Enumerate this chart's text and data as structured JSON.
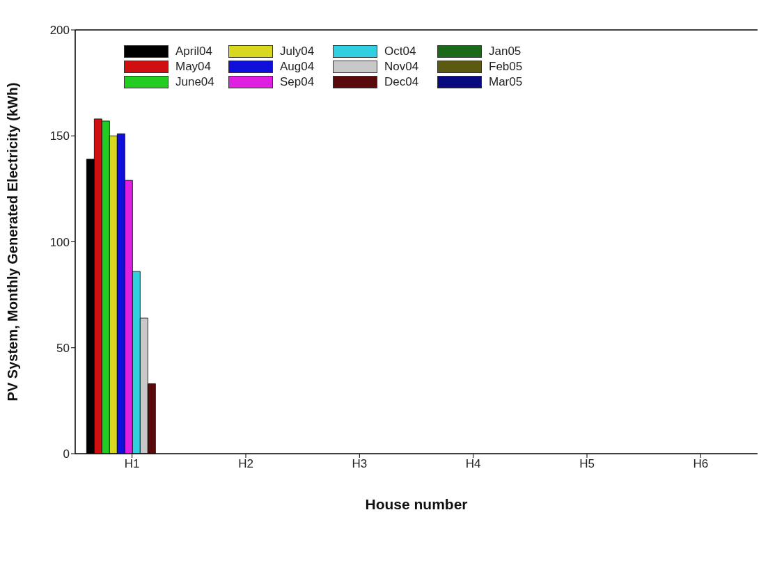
{
  "chart_data": {
    "type": "bar",
    "xlabel": "House number",
    "ylabel": "PV System, Monthly Generated Electricity (kWh)",
    "categories": [
      "H1",
      "H2",
      "H3",
      "H4",
      "H5",
      "H6"
    ],
    "series": [
      {
        "name": "April04",
        "color": "#000000",
        "values": [
          139,
          0,
          0,
          0,
          0,
          0
        ]
      },
      {
        "name": "May04",
        "color": "#d01010",
        "values": [
          158,
          0,
          0,
          0,
          0,
          0
        ]
      },
      {
        "name": "June04",
        "color": "#22cc22",
        "values": [
          157,
          0,
          0,
          0,
          0,
          0
        ]
      },
      {
        "name": "July04",
        "color": "#d8d820",
        "values": [
          150,
          0,
          0,
          0,
          0,
          0
        ]
      },
      {
        "name": "Aug04",
        "color": "#1010dd",
        "values": [
          151,
          0,
          0,
          0,
          0,
          0
        ]
      },
      {
        "name": "Sep04",
        "color": "#e020e0",
        "values": [
          129,
          0,
          0,
          0,
          0,
          0
        ]
      },
      {
        "name": "Oct04",
        "color": "#30d0e0",
        "values": [
          86,
          0,
          0,
          0,
          0,
          0
        ]
      },
      {
        "name": "Nov04",
        "color": "#c8c8c8",
        "values": [
          64,
          0,
          0,
          0,
          0,
          0
        ]
      },
      {
        "name": "Dec04",
        "color": "#5a0a0a",
        "values": [
          33,
          0,
          0,
          0,
          0,
          0
        ]
      },
      {
        "name": "Jan05",
        "color": "#1a6a1a",
        "values": [
          0,
          0,
          0,
          0,
          0,
          0
        ]
      },
      {
        "name": "Feb05",
        "color": "#5a5a10",
        "values": [
          0,
          0,
          0,
          0,
          0,
          0
        ]
      },
      {
        "name": "Mar05",
        "color": "#0a0a80",
        "values": [
          0,
          0,
          0,
          0,
          0,
          0
        ]
      }
    ],
    "ylim": [
      0,
      200
    ],
    "yticks": [
      0,
      50,
      100,
      150,
      200
    ],
    "grid": false,
    "legend": "top left"
  }
}
